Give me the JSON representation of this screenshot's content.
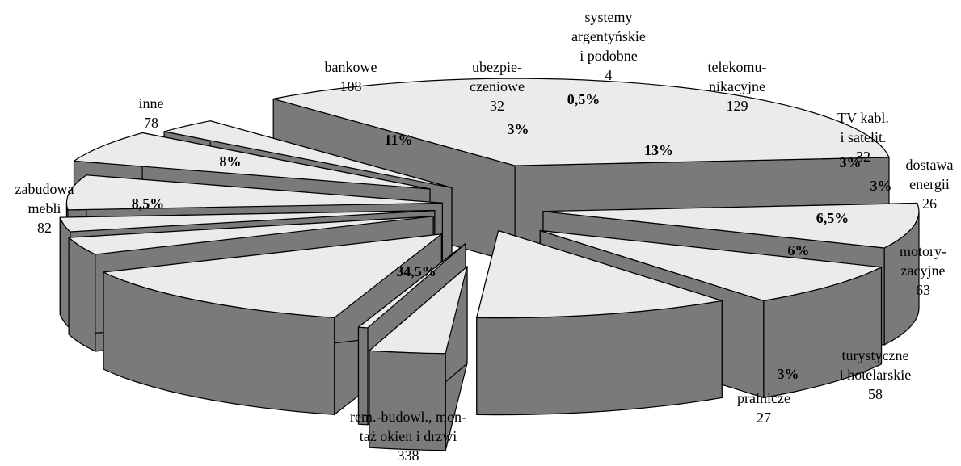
{
  "chart_data": {
    "type": "pie",
    "title": "",
    "style": "exploded-3d",
    "colors": {
      "top": "#ebebeb",
      "side": "#7a7a7a",
      "stroke": "#000000"
    },
    "slices": [
      {
        "label": [
          "rem.-budowl., mon-",
          "taż okien i drzwi"
        ],
        "value": "338",
        "percent": "34,5%"
      },
      {
        "label": [
          "zabudowa",
          "mebli"
        ],
        "value": "82",
        "percent": "8,5%"
      },
      {
        "label": [
          "inne"
        ],
        "value": "78",
        "percent": "8%"
      },
      {
        "label": [
          "bankowe"
        ],
        "value": "108",
        "percent": "11%"
      },
      {
        "label": [
          "ubezpie-",
          "czeniowe"
        ],
        "value": "32",
        "percent": "3%"
      },
      {
        "label": [
          "systemy",
          "argentyńskie",
          "i podobne"
        ],
        "value": "4",
        "percent": "0,5%"
      },
      {
        "label": [
          "telekomu-",
          "nikacyjne"
        ],
        "value": "129",
        "percent": "13%"
      },
      {
        "label": [
          "TV kabl.",
          "i satelit."
        ],
        "value": "32",
        "percent": "3%"
      },
      {
        "label": [
          "dostawa",
          "energii"
        ],
        "value": "26",
        "percent": "3%"
      },
      {
        "label": [
          "motory-",
          "zacyjne"
        ],
        "value": "63",
        "percent": "6,5%"
      },
      {
        "label": [
          "turystyczne",
          "i hotelarskie"
        ],
        "value": "58",
        "percent": "6%"
      },
      {
        "label": [
          "pralnicze"
        ],
        "value": "27",
        "percent": "3%"
      }
    ]
  }
}
